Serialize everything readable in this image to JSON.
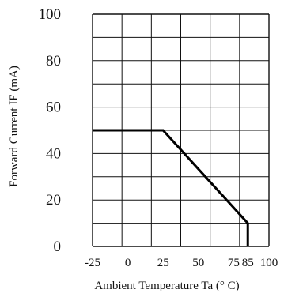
{
  "colors": {
    "background": "#ffffff",
    "grid": "#111111",
    "series": "#000000",
    "text": "#111111"
  },
  "chart_data": {
    "type": "line",
    "title": "",
    "xlabel": "Ambient Temperature Ta (° C)",
    "ylabel": "Forward Current IF (mA)",
    "xlim": [
      -25,
      100
    ],
    "ylim": [
      0,
      100
    ],
    "x_tick_values": [
      -25,
      0,
      25,
      50,
      75,
      85,
      100
    ],
    "x_tick_labels": [
      "-25",
      "0",
      "25",
      "50",
      "75",
      "85",
      "100"
    ],
    "y_tick_values": [
      0,
      20,
      40,
      60,
      80,
      100
    ],
    "y_tick_labels": [
      "0",
      "20",
      "40",
      "60",
      "80",
      "100"
    ],
    "grid": true,
    "series": [
      {
        "x": [
          -25,
          25,
          85,
          85
        ],
        "y": [
          50,
          50,
          10,
          0
        ]
      }
    ]
  }
}
